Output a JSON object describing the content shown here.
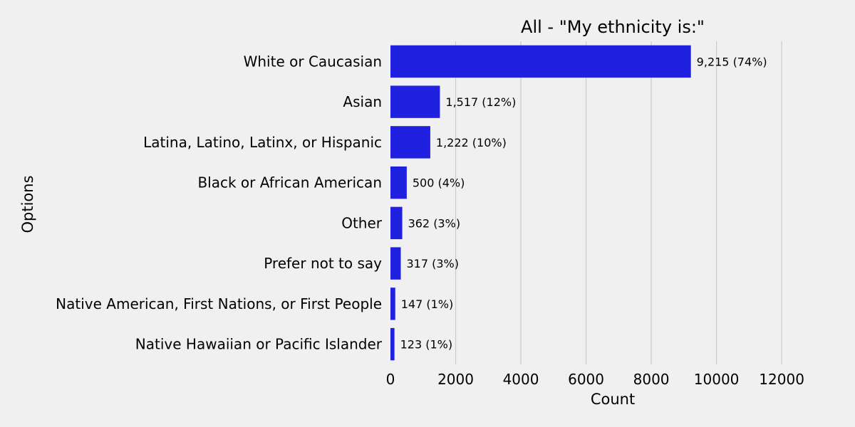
{
  "chart_data": {
    "type": "bar",
    "orientation": "horizontal",
    "title": "All - \"My ethnicity is:\"",
    "xlabel": "Count",
    "ylabel": "Options",
    "xlim": [
      0,
      12500
    ],
    "xticks": [
      "0",
      "2000",
      "4000",
      "6000",
      "8000",
      "10000",
      "12000"
    ],
    "grid": "vertical",
    "bar_color": "#2020e0",
    "categories": [
      "White or Caucasian",
      "Asian",
      "Latina, Latino, Latinx, or Hispanic",
      "Black or African American",
      "Other",
      "Prefer not to say",
      "Native American, First Nations, or First People",
      "Native Hawaiian or Pacific Islander"
    ],
    "values": [
      9215,
      1517,
      1222,
      500,
      362,
      317,
      147,
      123
    ],
    "data_labels": [
      "9,215 (74%)",
      "1,517 (12%)",
      "1,222 (10%)",
      "500 (4%)",
      "362 (3%)",
      "317 (3%)",
      "147 (1%)",
      "123 (1%)"
    ]
  }
}
